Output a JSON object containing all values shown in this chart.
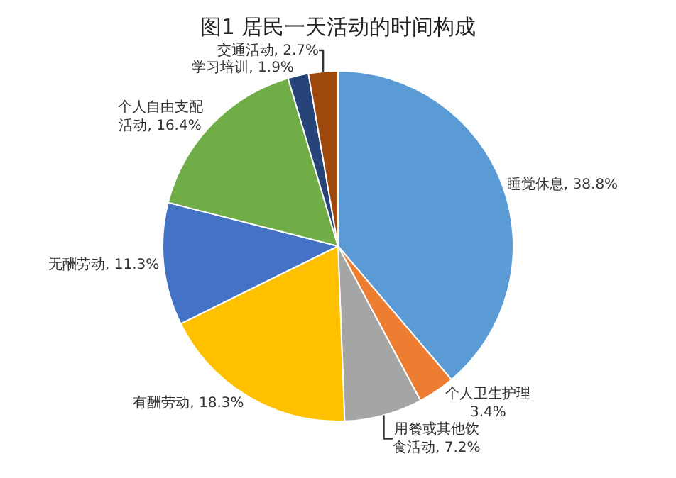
{
  "chart_data": {
    "type": "pie",
    "title": "图1 居民一天活动的时间构成",
    "categories": [
      "睡觉休息",
      "个人卫生护理",
      "用餐或其他饮食活动",
      "有酬劳动",
      "无酬劳动",
      "个人自由支配活动",
      "学习培训",
      "交通活动"
    ],
    "values": [
      38.8,
      3.4,
      7.2,
      18.3,
      11.3,
      16.4,
      1.9,
      2.7
    ],
    "value_labels": [
      "38.8%",
      "3.4%",
      "7.2%",
      "18.3%",
      "11.3%",
      "16.4%",
      "1.9%",
      "2.7%"
    ],
    "colors": [
      "#5b9bd5",
      "#ed7d31",
      "#a5a5a5",
      "#ffc000",
      "#4472c4",
      "#70ad47",
      "#264478",
      "#9e480e"
    ],
    "legend": false
  }
}
